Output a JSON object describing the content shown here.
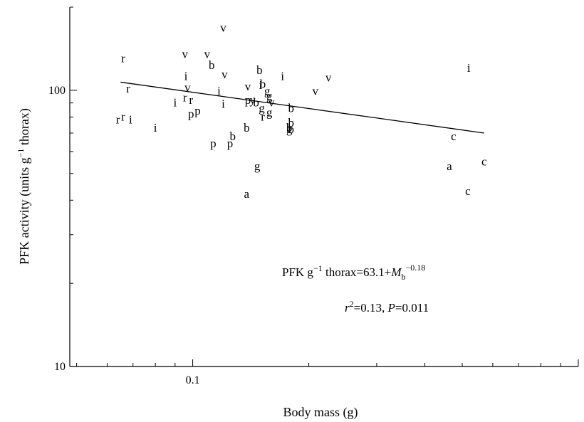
{
  "chart_data": {
    "type": "scatter",
    "xlabel": "Body mass (g)",
    "ylabel_main": "PFK activity (units g",
    "ylabel_sup": "−1",
    "ylabel_tail": " thorax)",
    "x_scale": "log",
    "y_scale": "log",
    "xlim": [
      0.048,
      1.0
    ],
    "ylim": [
      10,
      200
    ],
    "x_ticks": [
      {
        "value": 0.1,
        "label": "0.1"
      }
    ],
    "y_ticks": [
      {
        "value": 10,
        "label": "10"
      },
      {
        "value": 100,
        "label": "100"
      }
    ],
    "grid": false,
    "regression_line": {
      "x_start": 0.065,
      "y_start": 107,
      "x_end": 0.57,
      "y_end": 70
    },
    "equation": {
      "prefix": "PFK g",
      "sup1": "−1",
      "mid": " thorax=63.1+",
      "M": "M",
      "sub": "b",
      "sup2": "−0.18"
    },
    "stats": {
      "r": "r",
      "r_sup": "2",
      "r_val": "=0.13, ",
      "P": "P",
      "p_val": "=0.011"
    },
    "points": [
      {
        "label": "r",
        "x": 0.066,
        "y": 130
      },
      {
        "label": "r",
        "x": 0.068,
        "y": 101
      },
      {
        "label": "r",
        "x": 0.064,
        "y": 78
      },
      {
        "label": "r",
        "x": 0.066,
        "y": 80
      },
      {
        "label": "i",
        "x": 0.069,
        "y": 78
      },
      {
        "label": "i",
        "x": 0.08,
        "y": 73
      },
      {
        "label": "v",
        "x": 0.0955,
        "y": 135
      },
      {
        "label": "i",
        "x": 0.096,
        "y": 112
      },
      {
        "label": "v",
        "x": 0.097,
        "y": 102
      },
      {
        "label": "r",
        "x": 0.0955,
        "y": 94
      },
      {
        "label": "i",
        "x": 0.09,
        "y": 90
      },
      {
        "label": "r",
        "x": 0.099,
        "y": 92
      },
      {
        "label": "p",
        "x": 0.099,
        "y": 82
      },
      {
        "label": "p",
        "x": 0.103,
        "y": 84
      },
      {
        "label": "v",
        "x": 0.12,
        "y": 168
      },
      {
        "label": "v",
        "x": 0.109,
        "y": 135
      },
      {
        "label": "b",
        "x": 0.112,
        "y": 123
      },
      {
        "label": "v",
        "x": 0.121,
        "y": 114
      },
      {
        "label": "i",
        "x": 0.117,
        "y": 99
      },
      {
        "label": "i",
        "x": 0.12,
        "y": 89
      },
      {
        "label": "p",
        "x": 0.113,
        "y": 64
      },
      {
        "label": "p",
        "x": 0.125,
        "y": 64
      },
      {
        "label": "b",
        "x": 0.127,
        "y": 68
      },
      {
        "label": "a",
        "x": 0.138,
        "y": 42
      },
      {
        "label": "b",
        "x": 0.149,
        "y": 118
      },
      {
        "label": "i",
        "x": 0.15,
        "y": 104
      },
      {
        "label": "v",
        "x": 0.139,
        "y": 103
      },
      {
        "label": "b",
        "x": 0.152,
        "y": 105
      },
      {
        "label": "p",
        "x": 0.139,
        "y": 92
      },
      {
        "label": "y",
        "x": 0.143,
        "y": 92
      },
      {
        "label": "b",
        "x": 0.146,
        "y": 90
      },
      {
        "label": "g",
        "x": 0.156,
        "y": 99
      },
      {
        "label": "g",
        "x": 0.158,
        "y": 95
      },
      {
        "label": "g",
        "x": 0.151,
        "y": 86
      },
      {
        "label": "v",
        "x": 0.16,
        "y": 90
      },
      {
        "label": "g",
        "x": 0.158,
        "y": 83
      },
      {
        "label": "r",
        "x": 0.152,
        "y": 80
      },
      {
        "label": "b",
        "x": 0.138,
        "y": 73
      },
      {
        "label": "g",
        "x": 0.147,
        "y": 53
      },
      {
        "label": "i",
        "x": 0.171,
        "y": 112
      },
      {
        "label": "b",
        "x": 0.18,
        "y": 86
      },
      {
        "label": "b",
        "x": 0.18,
        "y": 76
      },
      {
        "label": "b",
        "x": 0.178,
        "y": 73
      },
      {
        "label": "b",
        "x": 0.18,
        "y": 72
      },
      {
        "label": "g",
        "x": 0.178,
        "y": 72
      },
      {
        "label": "v",
        "x": 0.208,
        "y": 99
      },
      {
        "label": "v",
        "x": 0.225,
        "y": 111
      },
      {
        "label": "i",
        "x": 0.52,
        "y": 120
      },
      {
        "label": "c",
        "x": 0.475,
        "y": 68
      },
      {
        "label": "a",
        "x": 0.463,
        "y": 53
      },
      {
        "label": "c",
        "x": 0.57,
        "y": 55
      },
      {
        "label": "c",
        "x": 0.517,
        "y": 43
      }
    ]
  }
}
